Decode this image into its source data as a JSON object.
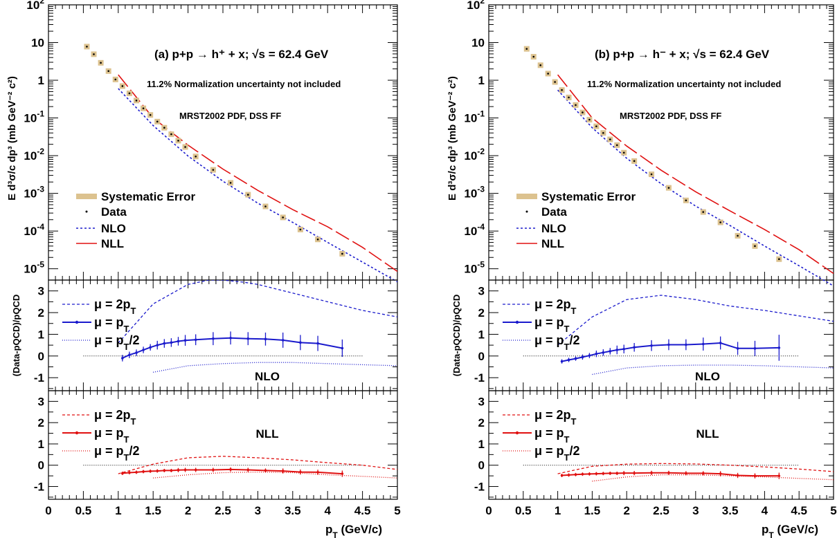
{
  "colors": {
    "nlo": "#1a1acc",
    "nll": "#e01010",
    "syst": "#dcc28f",
    "zero": "#000000"
  },
  "axis_labels": {
    "cross_section": "E d³σ/c dp³ (mb GeV⁻² c²)",
    "ratio": "(Data-pQCD)/pQCD",
    "x": "p_T (GeV/c)"
  },
  "xticks": [
    0,
    0.5,
    1,
    1.5,
    2,
    2.5,
    3,
    3.5,
    4,
    4.5,
    5
  ],
  "ratio_ticks": [
    -1,
    0,
    1,
    2,
    3
  ],
  "legend_top": [
    "Systematic Error",
    "Data",
    "NLO",
    "NLL"
  ],
  "legend_ratio": [
    "μ = 2p_T",
    "μ = p_T",
    "μ = p_T/2"
  ],
  "chart_data": [
    {
      "type": "scatter",
      "title": "(a) p+p → h⁺ + x; √s = 62.4 GeV",
      "note1": "11.2% Normalization uncertainty not included",
      "note2": "MRST2002 PDF, DSS FF",
      "xlim": [
        0,
        5
      ],
      "ylim_log10": [
        -5.3,
        2
      ],
      "ylog": true,
      "data": {
        "x": [
          0.55,
          0.65,
          0.75,
          0.86,
          0.96,
          1.06,
          1.16,
          1.26,
          1.36,
          1.46,
          1.56,
          1.66,
          1.76,
          1.86,
          1.96,
          2.11,
          2.36,
          2.61,
          2.86,
          3.11,
          3.36,
          3.61,
          3.86,
          4.21
        ],
        "y": [
          7.8,
          4.9,
          2.9,
          1.75,
          1.05,
          0.7,
          0.45,
          0.29,
          0.18,
          0.12,
          0.08,
          0.055,
          0.037,
          0.025,
          0.017,
          0.0095,
          0.0042,
          0.0019,
          0.00092,
          0.00045,
          0.00023,
          0.00011,
          6e-05,
          2.5e-05
        ]
      },
      "nlo_curve": {
        "x": [
          1,
          1.5,
          2,
          2.5,
          3,
          3.5,
          4,
          4.5,
          5
        ],
        "y": [
          0.6,
          0.063,
          0.0098,
          0.0021,
          0.00055,
          0.00017,
          5e-05,
          1.5e-05,
          4.5e-06
        ]
      },
      "nll_curve": {
        "x": [
          1,
          1.5,
          2,
          2.5,
          3,
          3.5,
          4,
          4.5,
          5
        ],
        "y": [
          1.4,
          0.1,
          0.019,
          0.0044,
          0.0012,
          0.00037,
          0.00013,
          3.7e-05,
          8.5e-06
        ]
      },
      "nlo_ratio": {
        "label": "NLO",
        "x": [
          1.06,
          1.16,
          1.26,
          1.36,
          1.46,
          1.56,
          1.66,
          1.76,
          1.86,
          1.96,
          2.11,
          2.36,
          2.61,
          2.86,
          3.11,
          3.36,
          3.61,
          3.86,
          4.21
        ],
        "y": [
          -0.1,
          0.05,
          0.15,
          0.28,
          0.4,
          0.5,
          0.58,
          0.62,
          0.68,
          0.72,
          0.75,
          0.8,
          0.83,
          0.8,
          0.78,
          0.73,
          0.62,
          0.58,
          0.36
        ],
        "err": [
          0.15,
          0.15,
          0.15,
          0.15,
          0.15,
          0.2,
          0.2,
          0.2,
          0.2,
          0.25,
          0.25,
          0.3,
          0.3,
          0.3,
          0.3,
          0.35,
          0.35,
          0.35,
          0.4
        ],
        "mu2": {
          "x": [
            1,
            1.5,
            2,
            2.3,
            2.5,
            2.8,
            3,
            3.5,
            4,
            4.5,
            5
          ],
          "y": [
            0.6,
            2.4,
            3.3,
            3.5,
            3.5,
            3.4,
            3.3,
            2.9,
            2.5,
            2.1,
            1.8
          ]
        },
        "mu_half": {
          "x": [
            1.5,
            2,
            2.5,
            3,
            3.5,
            4,
            4.5,
            5
          ],
          "y": [
            -0.75,
            -0.45,
            -0.35,
            -0.3,
            -0.3,
            -0.35,
            -0.4,
            -0.45
          ]
        },
        "zero": [
          0.5,
          4.5
        ]
      },
      "nll_ratio": {
        "label": "NLL",
        "x": [
          1.06,
          1.16,
          1.26,
          1.36,
          1.46,
          1.56,
          1.66,
          1.76,
          1.86,
          1.96,
          2.11,
          2.36,
          2.61,
          2.86,
          3.11,
          3.36,
          3.61,
          3.86,
          4.21
        ],
        "y": [
          -0.38,
          -0.35,
          -0.33,
          -0.3,
          -0.28,
          -0.27,
          -0.25,
          -0.25,
          -0.23,
          -0.22,
          -0.22,
          -0.22,
          -0.2,
          -0.22,
          -0.25,
          -0.27,
          -0.32,
          -0.33,
          -0.4
        ],
        "err": [
          0.08,
          0.08,
          0.08,
          0.08,
          0.08,
          0.08,
          0.08,
          0.08,
          0.1,
          0.1,
          0.1,
          0.1,
          0.1,
          0.1,
          0.1,
          0.12,
          0.12,
          0.12,
          0.15
        ],
        "mu2": {
          "x": [
            1,
            1.5,
            2,
            2.5,
            3,
            3.5,
            4,
            4.5,
            5
          ],
          "y": [
            -0.4,
            0.05,
            0.35,
            0.42,
            0.35,
            0.25,
            0.12,
            0.0,
            -0.2
          ]
        },
        "mu_half": {
          "x": [
            1.5,
            2,
            2.5,
            3,
            3.5,
            4,
            4.5,
            5
          ],
          "y": [
            -0.6,
            -0.45,
            -0.35,
            -0.32,
            -0.35,
            -0.45,
            -0.52,
            -0.6
          ]
        },
        "zero": [
          0.5,
          4.5
        ]
      }
    },
    {
      "type": "scatter",
      "title": "(b) p+p → h⁻ + x; √s = 62.4 GeV",
      "note1": "11.2% Normalization uncertainty not included",
      "note2": "MRST2002 PDF, DSS FF",
      "xlim": [
        0,
        5
      ],
      "ylim_log10": [
        -5.3,
        2
      ],
      "ylog": true,
      "data": {
        "x": [
          0.55,
          0.65,
          0.75,
          0.86,
          0.96,
          1.06,
          1.16,
          1.26,
          1.36,
          1.46,
          1.56,
          1.66,
          1.76,
          1.86,
          1.96,
          2.11,
          2.36,
          2.61,
          2.86,
          3.11,
          3.36,
          3.61,
          3.86,
          4.21
        ],
        "y": [
          6.8,
          4.2,
          2.5,
          1.5,
          0.9,
          0.55,
          0.35,
          0.22,
          0.14,
          0.09,
          0.06,
          0.04,
          0.027,
          0.019,
          0.012,
          0.0072,
          0.0032,
          0.0014,
          0.00065,
          0.00032,
          0.00017,
          7.5e-05,
          4e-05,
          1.8e-05
        ]
      },
      "nlo_curve": {
        "x": [
          1,
          1.5,
          2,
          2.5,
          3,
          3.5,
          4,
          4.5,
          5
        ],
        "y": [
          0.55,
          0.055,
          0.0085,
          0.0018,
          0.00046,
          0.00014,
          4e-05,
          1.2e-05,
          3.5e-06
        ]
      },
      "nll_curve": {
        "x": [
          1,
          1.5,
          2,
          2.5,
          3,
          3.5,
          4,
          4.5,
          5
        ],
        "y": [
          1.4,
          0.1,
          0.018,
          0.0041,
          0.0011,
          0.00034,
          0.00011,
          3.2e-05,
          7.5e-06
        ]
      },
      "nlo_ratio": {
        "label": "NLO",
        "x": [
          1.06,
          1.16,
          1.26,
          1.36,
          1.46,
          1.56,
          1.66,
          1.76,
          1.86,
          1.96,
          2.11,
          2.36,
          2.61,
          2.86,
          3.11,
          3.36,
          3.61,
          3.86,
          4.21
        ],
        "y": [
          -0.25,
          -0.18,
          -0.12,
          -0.05,
          0.02,
          0.1,
          0.16,
          0.22,
          0.28,
          0.32,
          0.4,
          0.48,
          0.52,
          0.52,
          0.55,
          0.6,
          0.35,
          0.35,
          0.38
        ],
        "err": [
          0.1,
          0.1,
          0.1,
          0.12,
          0.12,
          0.15,
          0.15,
          0.15,
          0.2,
          0.2,
          0.2,
          0.25,
          0.25,
          0.25,
          0.3,
          0.3,
          0.3,
          0.35,
          0.6
        ],
        "mu2": {
          "x": [
            1,
            1.5,
            2,
            2.5,
            3,
            3.5,
            4,
            4.5,
            5
          ],
          "y": [
            0.5,
            1.8,
            2.6,
            2.8,
            2.6,
            2.3,
            2.1,
            1.85,
            1.6
          ]
        },
        "mu_half": {
          "x": [
            1.5,
            2,
            2.5,
            3,
            3.5,
            4,
            4.5,
            5
          ],
          "y": [
            -0.85,
            -0.55,
            -0.45,
            -0.42,
            -0.42,
            -0.45,
            -0.5,
            -0.55
          ]
        },
        "zero": [
          0.5,
          4.5
        ]
      },
      "nll_ratio": {
        "label": "NLL",
        "x": [
          1.06,
          1.16,
          1.26,
          1.36,
          1.46,
          1.56,
          1.66,
          1.76,
          1.86,
          1.96,
          2.11,
          2.36,
          2.61,
          2.86,
          3.11,
          3.36,
          3.61,
          3.86,
          4.21
        ],
        "y": [
          -0.48,
          -0.46,
          -0.44,
          -0.42,
          -0.41,
          -0.4,
          -0.39,
          -0.38,
          -0.38,
          -0.37,
          -0.37,
          -0.36,
          -0.36,
          -0.38,
          -0.38,
          -0.4,
          -0.48,
          -0.5,
          -0.5
        ],
        "err": [
          0.08,
          0.08,
          0.08,
          0.08,
          0.08,
          0.08,
          0.08,
          0.08,
          0.08,
          0.1,
          0.1,
          0.1,
          0.1,
          0.1,
          0.1,
          0.12,
          0.12,
          0.12,
          0.15
        ],
        "mu2": {
          "x": [
            1,
            1.5,
            2,
            2.5,
            3,
            3.5,
            4,
            4.5,
            5
          ],
          "y": [
            -0.4,
            -0.05,
            0.05,
            0.08,
            0.06,
            0.0,
            -0.08,
            -0.18,
            -0.3
          ]
        },
        "mu_half": {
          "x": [
            1.5,
            2,
            2.5,
            3,
            3.5,
            4,
            4.5,
            5
          ],
          "y": [
            -0.75,
            -0.55,
            -0.45,
            -0.45,
            -0.5,
            -0.55,
            -0.62,
            -0.68
          ]
        },
        "zero": [
          0.5,
          4.5
        ]
      }
    }
  ]
}
